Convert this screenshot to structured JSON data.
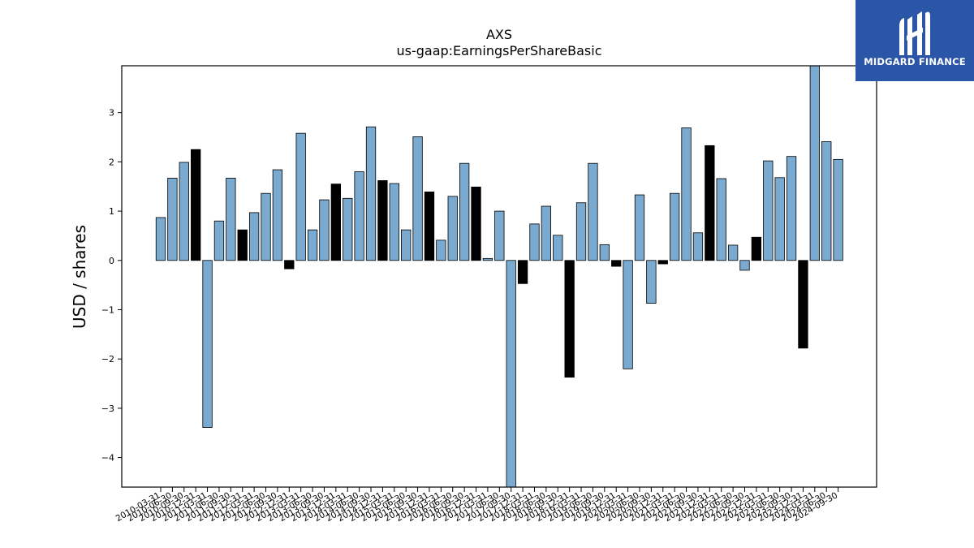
{
  "chart_data": {
    "type": "bar",
    "title": "AXS",
    "subtitle": "us-gaap:EarningsPerShareBasic",
    "ylabel": "USD / shares",
    "xlabel": "",
    "ylim": [
      -4.6,
      3.95
    ],
    "yticks": [
      -4,
      -3,
      -2,
      -1,
      0,
      1,
      2,
      3
    ],
    "grid": false,
    "colors": {
      "bar": "#7aaad0",
      "highlight": "#000000",
      "edge": "#000000"
    },
    "categories": [
      "2010-03-31",
      "2010-06-30",
      "2010-09-30",
      "2010-12-31",
      "2011-03-31",
      "2011-06-30",
      "2011-09-30",
      "2011-12-31",
      "2012-03-31",
      "2012-06-30",
      "2012-09-30",
      "2012-12-31",
      "2013-03-31",
      "2013-06-30",
      "2013-09-30",
      "2013-12-31",
      "2014-03-31",
      "2014-06-30",
      "2014-09-30",
      "2014-12-31",
      "2015-03-31",
      "2015-06-30",
      "2015-09-30",
      "2015-12-31",
      "2016-03-31",
      "2016-06-30",
      "2016-09-30",
      "2016-12-31",
      "2017-03-31",
      "2017-06-30",
      "2017-09-30",
      "2017-12-31",
      "2018-03-31",
      "2018-06-30",
      "2018-09-30",
      "2018-12-31",
      "2019-03-31",
      "2019-06-30",
      "2019-09-30",
      "2019-12-31",
      "2020-03-31",
      "2020-06-30",
      "2020-09-30",
      "2020-12-31",
      "2021-03-31",
      "2021-06-30",
      "2021-09-30",
      "2021-12-31",
      "2022-03-31",
      "2022-06-30",
      "2022-09-30",
      "2022-12-31",
      "2023-03-31",
      "2023-06-30",
      "2023-09-30",
      "2023-12-31",
      "2024-03-31",
      "2024-06-30",
      "2024-09-30"
    ],
    "values": [
      0.87,
      1.67,
      1.99,
      2.25,
      -3.39,
      0.8,
      1.67,
      0.62,
      0.97,
      1.36,
      1.84,
      -0.17,
      2.58,
      0.62,
      1.23,
      1.55,
      1.26,
      1.8,
      2.71,
      1.62,
      1.56,
      0.62,
      2.51,
      1.39,
      0.41,
      1.3,
      1.97,
      1.49,
      0.04,
      1.0,
      -4.6,
      -0.47,
      0.74,
      1.1,
      0.51,
      -2.37,
      1.17,
      1.97,
      0.32,
      -0.12,
      -2.2,
      1.33,
      -0.87,
      -0.07,
      1.36,
      2.69,
      0.56,
      2.33,
      1.66,
      0.31,
      -0.2,
      0.47,
      2.02,
      1.68,
      2.11,
      -1.78,
      3.95,
      2.41,
      2.05
    ],
    "highlighted": [
      "2010-12-31",
      "2011-12-31",
      "2012-12-31",
      "2013-12-31",
      "2014-12-31",
      "2015-12-31",
      "2016-12-31",
      "2017-12-31",
      "2018-12-31",
      "2019-12-31",
      "2020-12-31",
      "2021-12-31",
      "2022-12-31",
      "2023-12-31"
    ]
  },
  "logo": {
    "text": "MIDGARD FINANCE",
    "background": "#2b55a6"
  }
}
